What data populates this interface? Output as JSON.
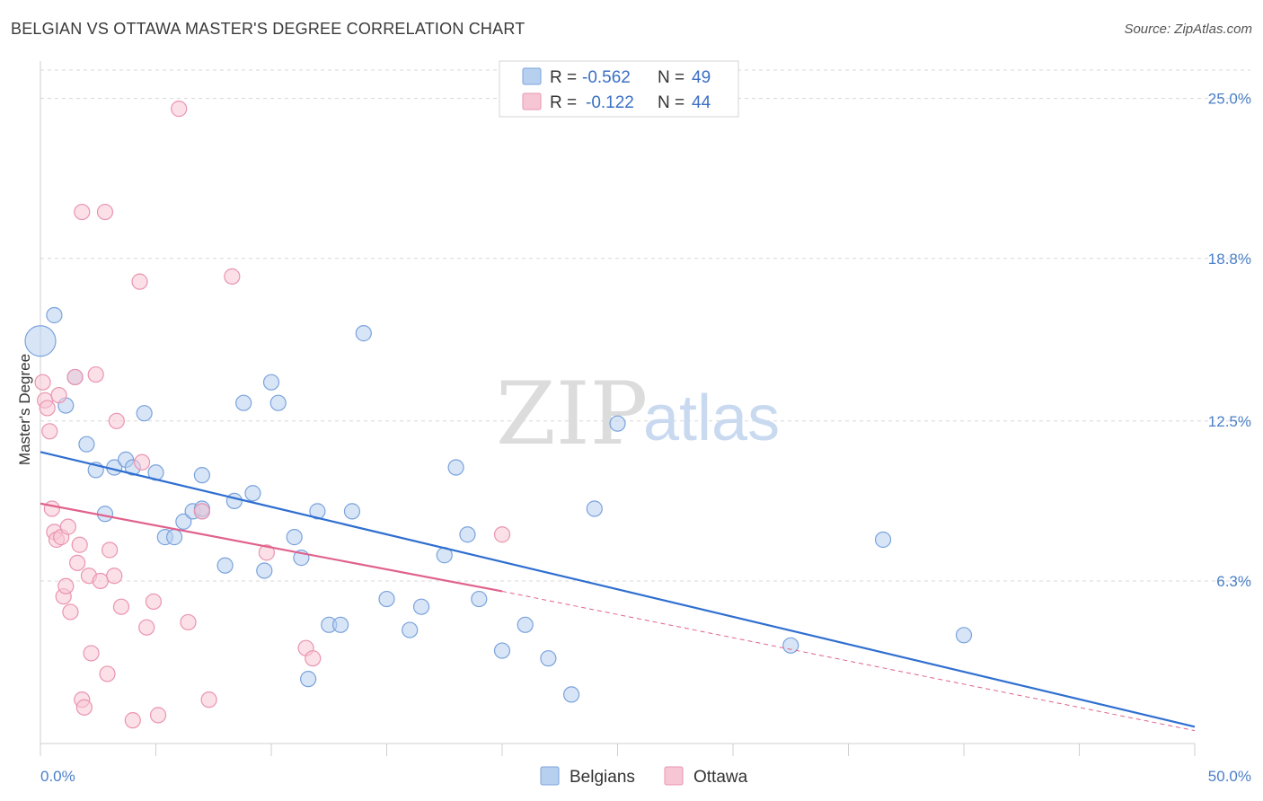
{
  "title": "BELGIAN VS OTTAWA MASTER'S DEGREE CORRELATION CHART",
  "source": "Source: ZipAtlas.com",
  "watermark": {
    "part1": "ZIP",
    "part2": "atlas"
  },
  "legend": {
    "r_label": "R =",
    "n_label": "N =",
    "rows": [
      {
        "r": "-0.562",
        "n": "49"
      },
      {
        "r": "-0.122",
        "n": "44"
      }
    ]
  },
  "colors": {
    "belgians_fill": "#b8d0f0",
    "belgians_stroke": "#7aa3dc",
    "belgians_line": "#2f6fd0",
    "ottawa_fill": "#f7c6d5",
    "ottawa_stroke": "#ea94b0",
    "ottawa_line": "#e0628c",
    "grid": "#d8d8d8",
    "tick_label": "#4a7fc8"
  },
  "chart_data": {
    "type": "scatter",
    "title": "BELGIAN VS OTTAWA MASTER'S DEGREE CORRELATION CHART",
    "xlabel": "",
    "ylabel": "Master's Degree",
    "xlim": [
      0,
      50
    ],
    "ylim": [
      0,
      26.1
    ],
    "x_tick_labels": [
      "0.0%",
      "50.0%"
    ],
    "y_ticks": [
      6.3,
      12.5,
      18.8,
      25.0
    ],
    "y_tick_labels": [
      "6.3%",
      "12.5%",
      "18.8%",
      "25.0%"
    ],
    "grid": true,
    "legend_position": "top-center",
    "series": [
      {
        "name": "Belgians",
        "r": -0.562,
        "n": 49,
        "trend": {
          "x": [
            0,
            50
          ],
          "y": [
            11.3,
            0.65
          ]
        },
        "trend_dashed": null,
        "points": [
          {
            "x": 0.6,
            "y": 16.6
          },
          {
            "x": 0.0,
            "y": 15.6,
            "big": true
          },
          {
            "x": 1.5,
            "y": 14.2
          },
          {
            "x": 1.1,
            "y": 13.1
          },
          {
            "x": 2.0,
            "y": 11.6
          },
          {
            "x": 2.4,
            "y": 10.6
          },
          {
            "x": 2.8,
            "y": 8.9
          },
          {
            "x": 3.2,
            "y": 10.7
          },
          {
            "x": 3.7,
            "y": 11.0
          },
          {
            "x": 4.0,
            "y": 10.7
          },
          {
            "x": 4.5,
            "y": 12.8
          },
          {
            "x": 5.0,
            "y": 10.5
          },
          {
            "x": 5.4,
            "y": 8.0
          },
          {
            "x": 5.8,
            "y": 8.0
          },
          {
            "x": 6.2,
            "y": 8.6
          },
          {
            "x": 6.6,
            "y": 9.0
          },
          {
            "x": 7.0,
            "y": 9.0
          },
          {
            "x": 7.0,
            "y": 9.1
          },
          {
            "x": 7.0,
            "y": 10.4
          },
          {
            "x": 8.0,
            "y": 6.9
          },
          {
            "x": 8.4,
            "y": 9.4
          },
          {
            "x": 8.8,
            "y": 13.2
          },
          {
            "x": 9.2,
            "y": 9.7
          },
          {
            "x": 9.7,
            "y": 6.7
          },
          {
            "x": 10.0,
            "y": 14.0
          },
          {
            "x": 10.3,
            "y": 13.2
          },
          {
            "x": 11.0,
            "y": 8.0
          },
          {
            "x": 11.3,
            "y": 7.2
          },
          {
            "x": 11.6,
            "y": 2.5
          },
          {
            "x": 12.0,
            "y": 9.0
          },
          {
            "x": 12.5,
            "y": 4.6
          },
          {
            "x": 13.0,
            "y": 4.6
          },
          {
            "x": 13.5,
            "y": 9.0
          },
          {
            "x": 14.0,
            "y": 15.9
          },
          {
            "x": 15.0,
            "y": 5.6
          },
          {
            "x": 16.0,
            "y": 4.4
          },
          {
            "x": 16.5,
            "y": 5.3
          },
          {
            "x": 17.5,
            "y": 7.3
          },
          {
            "x": 18.0,
            "y": 10.7
          },
          {
            "x": 18.5,
            "y": 8.1
          },
          {
            "x": 19.0,
            "y": 5.6
          },
          {
            "x": 20.0,
            "y": 3.6
          },
          {
            "x": 21.0,
            "y": 4.6
          },
          {
            "x": 22.0,
            "y": 3.3
          },
          {
            "x": 23.0,
            "y": 1.9
          },
          {
            "x": 24.0,
            "y": 9.1
          },
          {
            "x": 25.0,
            "y": 12.4
          },
          {
            "x": 32.5,
            "y": 3.8
          },
          {
            "x": 36.5,
            "y": 7.9
          },
          {
            "x": 40.0,
            "y": 4.2
          }
        ]
      },
      {
        "name": "Ottawa",
        "r": -0.122,
        "n": 44,
        "trend": {
          "x": [
            0,
            20
          ],
          "y": [
            9.3,
            5.9
          ]
        },
        "trend_dashed": {
          "x": [
            20,
            50
          ],
          "y": [
            5.9,
            0.5
          ]
        },
        "points": [
          {
            "x": 0.1,
            "y": 14.0
          },
          {
            "x": 0.2,
            "y": 13.3
          },
          {
            "x": 0.3,
            "y": 13.0
          },
          {
            "x": 0.4,
            "y": 12.1
          },
          {
            "x": 0.5,
            "y": 9.1
          },
          {
            "x": 0.6,
            "y": 8.2
          },
          {
            "x": 0.7,
            "y": 7.9
          },
          {
            "x": 0.8,
            "y": 13.5
          },
          {
            "x": 0.9,
            "y": 8.0
          },
          {
            "x": 1.0,
            "y": 5.7
          },
          {
            "x": 1.1,
            "y": 6.1
          },
          {
            "x": 1.2,
            "y": 8.4
          },
          {
            "x": 1.3,
            "y": 5.1
          },
          {
            "x": 1.5,
            "y": 14.2
          },
          {
            "x": 1.6,
            "y": 7.0
          },
          {
            "x": 1.7,
            "y": 7.7
          },
          {
            "x": 1.8,
            "y": 1.7
          },
          {
            "x": 1.9,
            "y": 1.4
          },
          {
            "x": 1.8,
            "y": 20.6
          },
          {
            "x": 2.1,
            "y": 6.5
          },
          {
            "x": 2.2,
            "y": 3.5
          },
          {
            "x": 2.4,
            "y": 14.3
          },
          {
            "x": 2.6,
            "y": 6.3
          },
          {
            "x": 2.8,
            "y": 20.6
          },
          {
            "x": 2.9,
            "y": 2.7
          },
          {
            "x": 3.0,
            "y": 7.5
          },
          {
            "x": 3.2,
            "y": 6.5
          },
          {
            "x": 3.3,
            "y": 12.5
          },
          {
            "x": 3.5,
            "y": 5.3
          },
          {
            "x": 4.0,
            "y": 0.9
          },
          {
            "x": 4.3,
            "y": 17.9
          },
          {
            "x": 4.4,
            "y": 10.9
          },
          {
            "x": 4.6,
            "y": 4.5
          },
          {
            "x": 4.9,
            "y": 5.5
          },
          {
            "x": 5.1,
            "y": 1.1
          },
          {
            "x": 6.0,
            "y": 24.6
          },
          {
            "x": 6.4,
            "y": 4.7
          },
          {
            "x": 7.0,
            "y": 9.0
          },
          {
            "x": 7.3,
            "y": 1.7
          },
          {
            "x": 8.3,
            "y": 18.1
          },
          {
            "x": 9.8,
            "y": 7.4
          },
          {
            "x": 11.5,
            "y": 3.7
          },
          {
            "x": 11.8,
            "y": 3.3
          },
          {
            "x": 20.0,
            "y": 8.1
          }
        ]
      }
    ]
  }
}
